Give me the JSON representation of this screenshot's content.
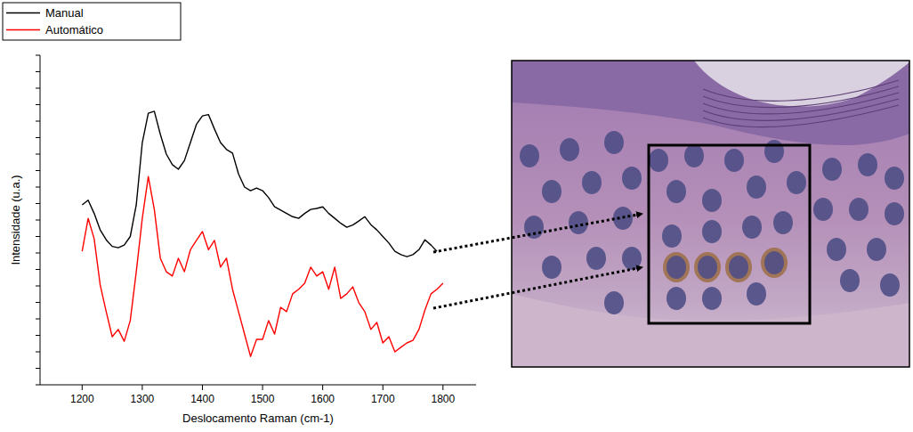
{
  "chart_data": {
    "type": "line",
    "x_label": "Deslocamento Raman (cm-1)",
    "y_label": "Intensidade (u.a.)",
    "x": [
      1200,
      1210,
      1220,
      1230,
      1240,
      1250,
      1260,
      1270,
      1280,
      1290,
      1300,
      1310,
      1320,
      1330,
      1340,
      1350,
      1360,
      1370,
      1380,
      1390,
      1400,
      1410,
      1420,
      1430,
      1440,
      1450,
      1460,
      1470,
      1480,
      1490,
      1500,
      1510,
      1520,
      1530,
      1540,
      1550,
      1560,
      1570,
      1580,
      1590,
      1600,
      1610,
      1620,
      1630,
      1640,
      1650,
      1660,
      1670,
      1680,
      1690,
      1700,
      1710,
      1720,
      1730,
      1740,
      1750,
      1760,
      1770,
      1780,
      1790,
      1800
    ],
    "series": [
      {
        "name": "Manual",
        "color": "#000000",
        "values": [
          54.6,
          56,
          52,
          47,
          44,
          42,
          41.6,
          42.4,
          45,
          54.6,
          73.5,
          82.4,
          83,
          76,
          70,
          66.8,
          65.4,
          68,
          73.5,
          79,
          81.6,
          82,
          77.6,
          73.5,
          71.4,
          70.3,
          64,
          60,
          58.9,
          59.7,
          58.9,
          56.8,
          54,
          53,
          52,
          51,
          50.5,
          52,
          53.2,
          53.5,
          54,
          52,
          50.5,
          49,
          47.8,
          48.5,
          49.7,
          51,
          48.6,
          47,
          45,
          43,
          40.5,
          39.5,
          38.9,
          39.5,
          41,
          44,
          42.4,
          40.5,
          null
        ]
      },
      {
        "name": "Automático",
        "color": "#ff0000",
        "values": [
          40.5,
          50.5,
          44.3,
          30.3,
          22.2,
          14.6,
          16.8,
          13.2,
          19.5,
          34.3,
          50.5,
          63.2,
          53.2,
          38.4,
          34.3,
          33,
          38.4,
          34.3,
          41,
          43.8,
          46.5,
          41,
          43.8,
          35.7,
          38.4,
          29,
          22.2,
          15.4,
          8.6,
          13.8,
          13.8,
          19.5,
          15.4,
          23.5,
          22.2,
          27.6,
          29,
          30.8,
          35.7,
          33,
          34.3,
          29,
          35.7,
          26.2,
          27.6,
          29.7,
          24.9,
          22.2,
          16.8,
          18.9,
          12.7,
          14.6,
          10,
          11.4,
          12.7,
          13.5,
          16.8,
          22.7,
          27.6,
          29,
          30.8
        ]
      }
    ],
    "xlim": [
      1130,
      1855
    ],
    "xticks": [
      1200,
      1300,
      1400,
      1500,
      1600,
      1700,
      1800
    ],
    "ylim": [
      0,
      100
    ],
    "yticks": [
      0,
      5,
      10,
      15,
      20,
      25,
      30,
      35,
      40,
      45,
      50,
      55,
      60,
      65,
      70,
      75,
      80,
      85,
      90,
      95,
      100
    ],
    "tick_labels": "x",
    "legend": "top-left",
    "grid": false
  }
}
